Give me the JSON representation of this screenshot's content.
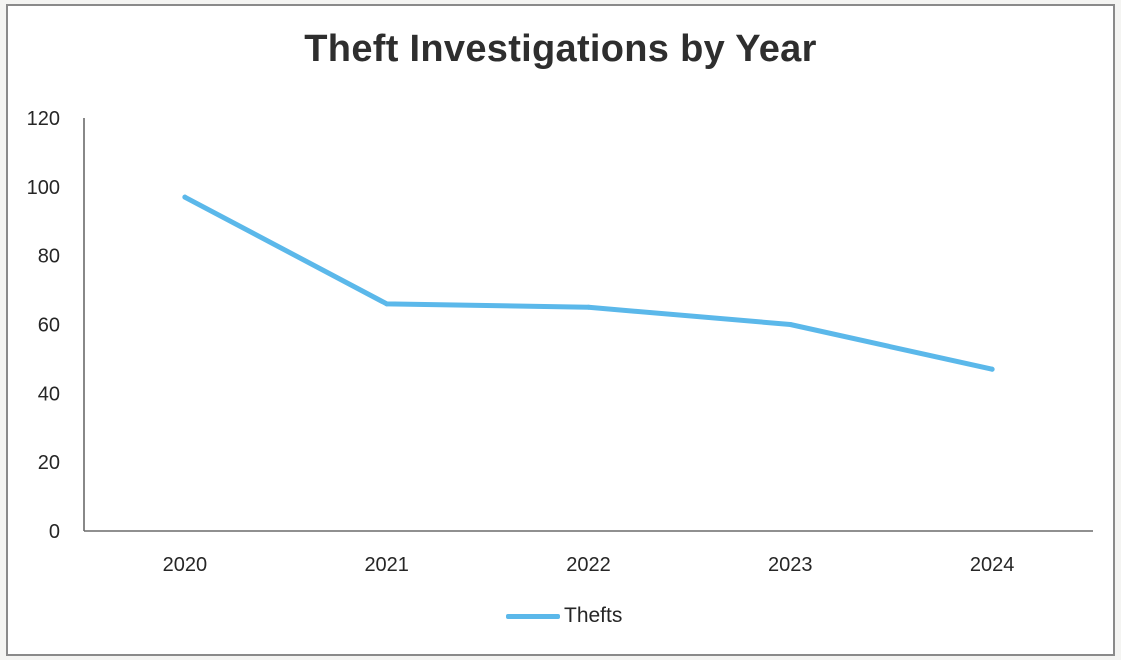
{
  "chart_data": {
    "type": "line",
    "title": "Theft Investigations by Year",
    "xlabel": "",
    "ylabel": "",
    "categories": [
      "2020",
      "2021",
      "2022",
      "2023",
      "2024"
    ],
    "series": [
      {
        "name": "Thefts",
        "values": [
          97,
          66,
          65,
          60,
          47
        ]
      }
    ],
    "ylim": [
      0,
      120
    ],
    "yticks": [
      0,
      20,
      40,
      60,
      80,
      100,
      120
    ],
    "grid": false,
    "legend": "bottom",
    "colors": {
      "series": "#5bb8ea",
      "axis": "#6b6b6b",
      "text": "#262626"
    }
  }
}
